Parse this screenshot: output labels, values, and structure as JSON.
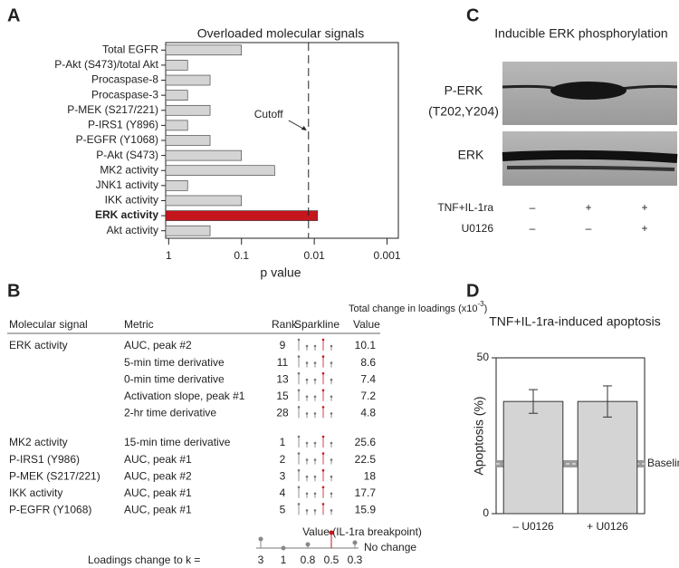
{
  "panel_labels": [
    "A",
    "B",
    "C",
    "D"
  ],
  "chart_data": [
    {
      "type": "hbar",
      "title": "Overloaded molecular signals",
      "categories": [
        "Total EGFR",
        "P-Akt (S473)/total Akt",
        "Procaspase-8",
        "Procaspase-3",
        "P-MEK (S217/221)",
        "P-IRS1 (Y896)",
        "P-EGFR (Y1068)",
        "P-Akt (S473)",
        "MK2 activity",
        "JNK1 activity",
        "IKK activity",
        "ERK activity",
        "Akt activity"
      ],
      "values": [
        0.1,
        0.55,
        0.27,
        0.55,
        0.27,
        0.55,
        0.27,
        0.1,
        0.035,
        0.55,
        0.1,
        0.009,
        0.27
      ],
      "color": "#d4d4d4",
      "highlight": 11,
      "highlight_color": "#c4161c",
      "xlabel": "p value",
      "xscale": "log",
      "xlim": [
        1.1,
        0.0007
      ],
      "xticks": [
        1,
        0.1,
        0.01,
        0.001
      ],
      "cutoff": {
        "value": 0.012,
        "label": "Cutoff"
      }
    },
    {
      "type": "bar",
      "title": "TNF+IL-1ra-induced apoptosis",
      "ylabel": "Apoptosis (%)",
      "categories": [
        "– U0126",
        "+ U0126"
      ],
      "values": [
        36,
        36
      ],
      "errors": [
        3.8,
        5
      ],
      "color": "#d4d4d4",
      "ylim": [
        0,
        50
      ],
      "yticks": [
        0,
        50
      ],
      "baseline": {
        "value": 16,
        "label": "Baseline"
      }
    }
  ],
  "blot": {
    "title": "Inducible ERK phosphorylation",
    "labels": [
      "P-ERK",
      "(T202,Y204)",
      "ERK"
    ],
    "treatments": [
      {
        "name": "TNF+IL-1ra",
        "signs": [
          "–",
          "+",
          "+"
        ]
      },
      {
        "name": "U0126",
        "signs": [
          "–",
          "–",
          "+"
        ]
      }
    ]
  },
  "table": {
    "title": "Total change in loadings (x10",
    "title_sup": "-3",
    "title_end": ")",
    "columns": [
      "Molecular signal",
      "Metric",
      "Rank",
      "Sparkline",
      "Value"
    ],
    "rows": [
      {
        "signal": "ERK activity",
        "metric": "AUC, peak #2",
        "rank": 9,
        "value": 10.1
      },
      {
        "signal": null,
        "metric": "5-min time derivative",
        "rank": 11,
        "value": 8.6
      },
      {
        "signal": null,
        "metric": "0-min time derivative",
        "rank": 13,
        "value": 7.4
      },
      {
        "signal": null,
        "metric": "Activation slope, peak #1",
        "rank": 15,
        "value": 7.2
      },
      {
        "signal": null,
        "metric": "2-hr time derivative",
        "rank": 28,
        "value": 4.8
      },
      {
        "signal": "MK2 activity",
        "metric": "15-min time derivative",
        "rank": 1,
        "value": 25.6
      },
      {
        "signal": "P-IRS1 (Y986)",
        "metric": "AUC, peak #1",
        "rank": 2,
        "value": 22.5
      },
      {
        "signal": "P-MEK (S217/221)",
        "metric": "AUC, peak #2",
        "rank": 3,
        "value": 18
      },
      {
        "signal": "IKK activity",
        "metric": "AUC, peak #1",
        "rank": 4,
        "value": 17.7
      },
      {
        "signal": "P-EGFR (Y1068)",
        "metric": "AUC, peak #1",
        "rank": 5,
        "value": 15.9
      }
    ],
    "legend": {
      "value_label": "Value (IL-1ra breakpoint)",
      "no_change": "No change",
      "k_label": "Loadings change to k =",
      "k_values": [
        3,
        1,
        0.8,
        0.5,
        0.3
      ]
    }
  }
}
